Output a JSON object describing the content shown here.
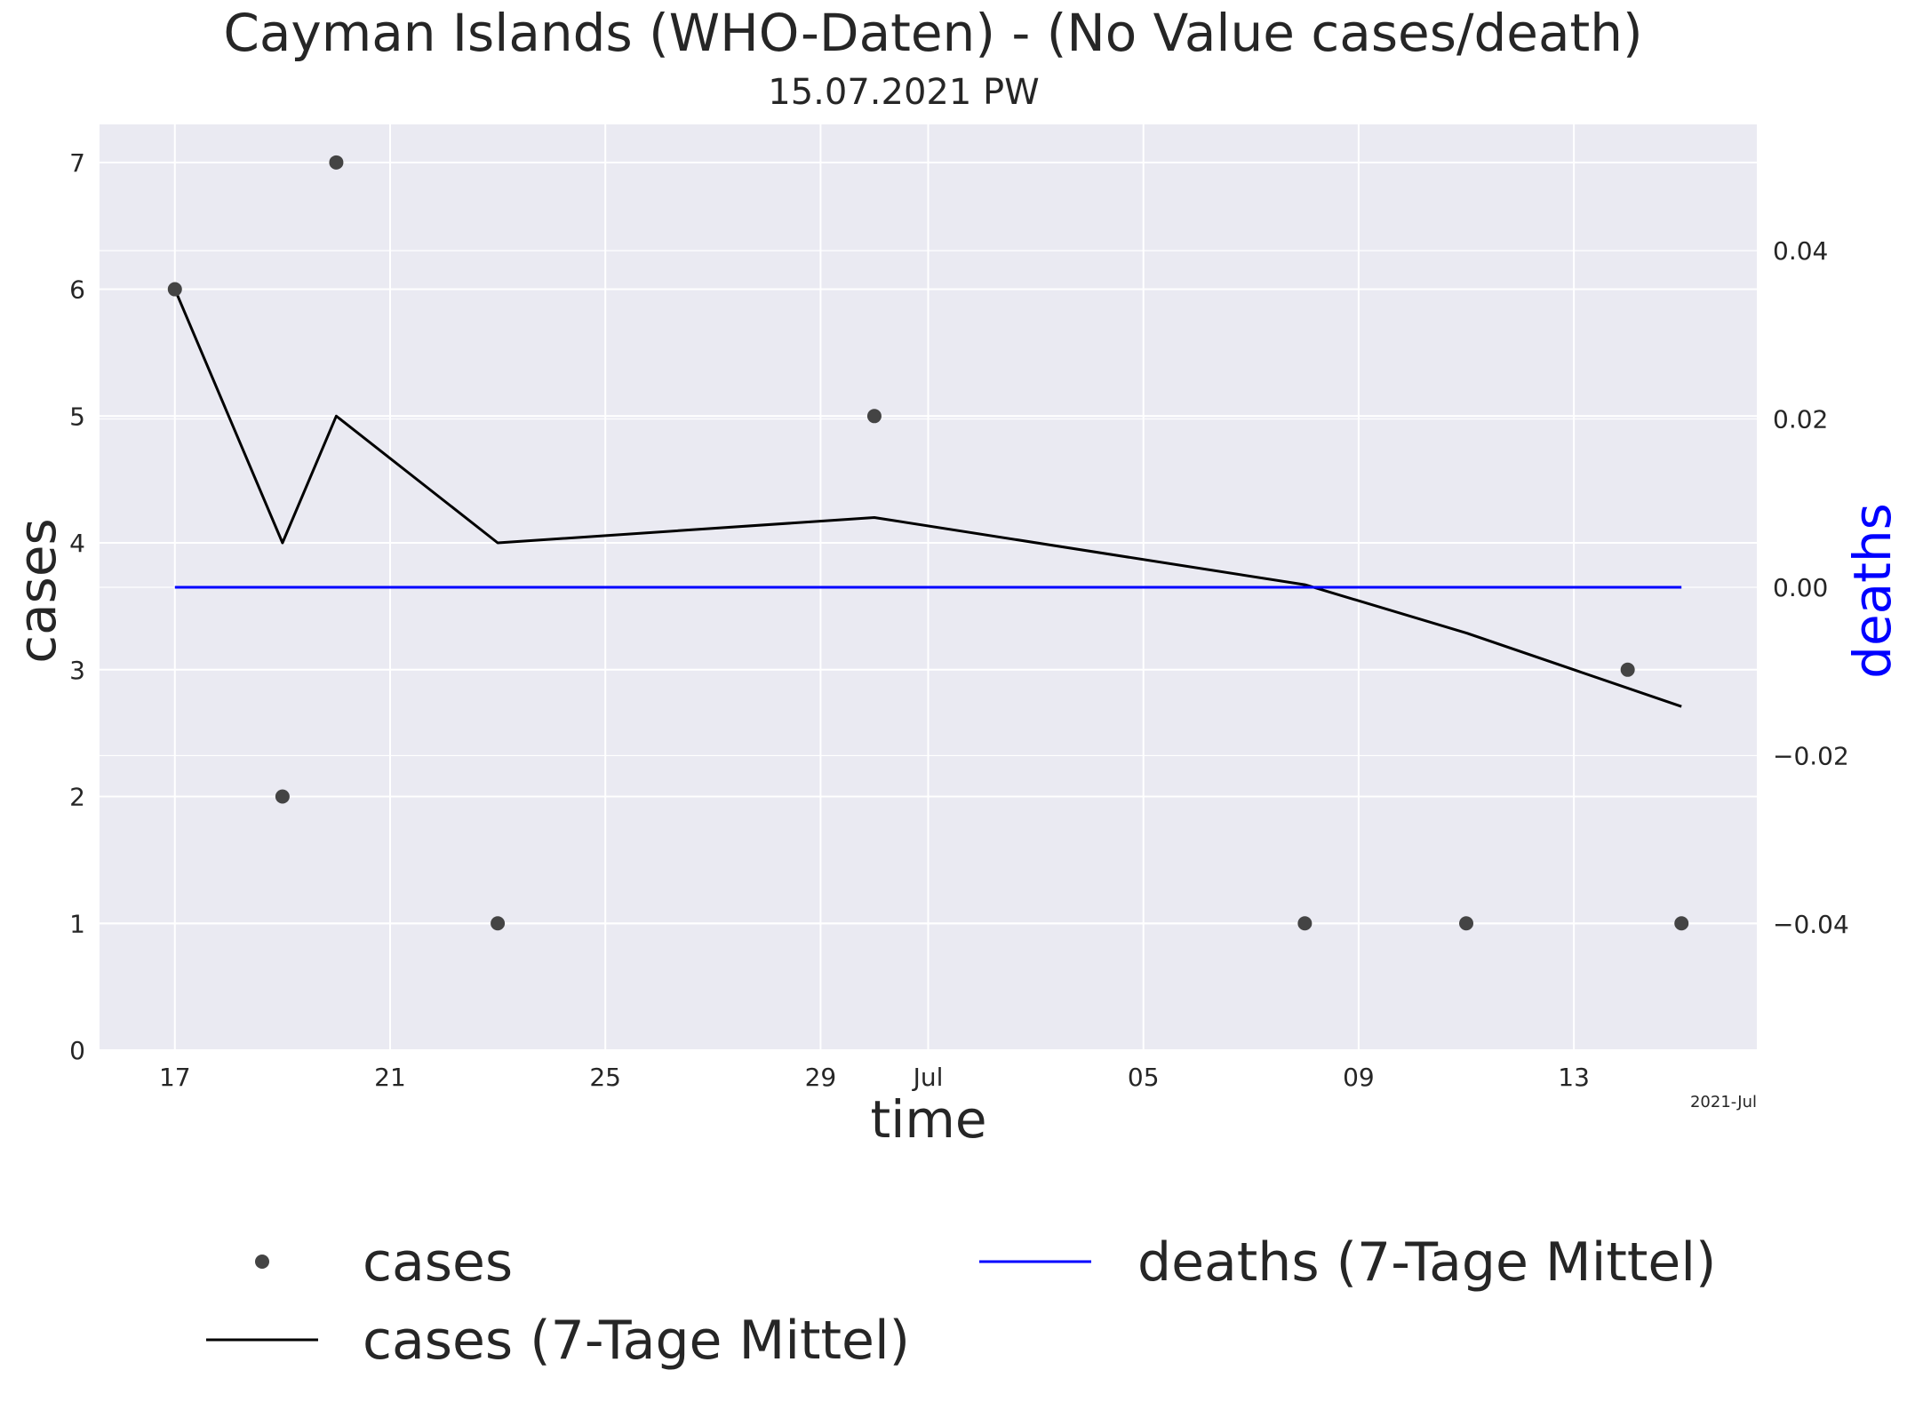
{
  "chart_data": {
    "type": "line",
    "title": "Cayman Islands (WHO-Daten) - (No Value cases/death)",
    "subtitle": "15.07.2021 PW",
    "xlabel": "time",
    "ylabel": "cases",
    "ylabel_right": "deaths",
    "x_offset_label": "2021-Jul",
    "xlim": [
      "2021-06-15.6",
      "2021-07-16.4"
    ],
    "ylim": [
      0,
      7.3
    ],
    "ylim_right": [
      -0.055,
      0.055
    ],
    "x_ticks": [
      {
        "date": "2021-06-17",
        "label": "17"
      },
      {
        "date": "2021-06-21",
        "label": "21"
      },
      {
        "date": "2021-06-25",
        "label": "25"
      },
      {
        "date": "2021-06-29",
        "label": "29"
      },
      {
        "date": "2021-07-01",
        "label": "Jul"
      },
      {
        "date": "2021-07-05",
        "label": "05"
      },
      {
        "date": "2021-07-09",
        "label": "09"
      },
      {
        "date": "2021-07-13",
        "label": "13"
      }
    ],
    "y_ticks": [
      0,
      1,
      2,
      3,
      4,
      5,
      6,
      7
    ],
    "y_ticks_right": [
      {
        "value": -0.04,
        "label": "−0.04"
      },
      {
        "value": -0.02,
        "label": "−0.02"
      },
      {
        "value": 0.0,
        "label": "0.00"
      },
      {
        "value": 0.02,
        "label": "0.02"
      },
      {
        "value": 0.04,
        "label": "0.04"
      }
    ],
    "grid": true,
    "legend_position": "bottom",
    "series": [
      {
        "name": "cases",
        "kind": "scatter",
        "axis": "left",
        "color": "#444444",
        "points": [
          {
            "x": "2021-06-17",
            "y": 6
          },
          {
            "x": "2021-06-19",
            "y": 2
          },
          {
            "x": "2021-06-20",
            "y": 7
          },
          {
            "x": "2021-06-23",
            "y": 1
          },
          {
            "x": "2021-06-30",
            "y": 5
          },
          {
            "x": "2021-07-08",
            "y": 1
          },
          {
            "x": "2021-07-11",
            "y": 1
          },
          {
            "x": "2021-07-14",
            "y": 3
          },
          {
            "x": "2021-07-15",
            "y": 1
          }
        ]
      },
      {
        "name": "cases (7-Tage Mittel)",
        "kind": "line",
        "axis": "left",
        "color": "#000000",
        "points": [
          {
            "x": "2021-06-17",
            "y": 6.0
          },
          {
            "x": "2021-06-19",
            "y": 4.0
          },
          {
            "x": "2021-06-20",
            "y": 5.0
          },
          {
            "x": "2021-06-23",
            "y": 4.0
          },
          {
            "x": "2021-06-30",
            "y": 4.2
          },
          {
            "x": "2021-07-08",
            "y": 3.67
          },
          {
            "x": "2021-07-11",
            "y": 3.29
          },
          {
            "x": "2021-07-15",
            "y": 2.71
          }
        ]
      },
      {
        "name": "deaths (7-Tage Mittel)",
        "kind": "line",
        "axis": "right",
        "color": "#0000ff",
        "points": [
          {
            "x": "2021-06-17",
            "y": 0.0
          },
          {
            "x": "2021-07-15",
            "y": 0.0
          }
        ]
      }
    ]
  }
}
